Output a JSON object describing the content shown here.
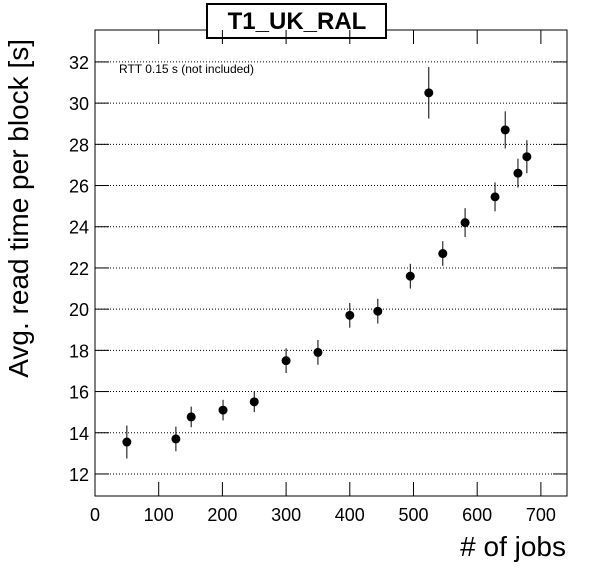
{
  "chart_data": {
    "type": "scatter",
    "title": "T1_UK_RAL",
    "annotation": "RTT 0.15 s (not included)",
    "x_label": "# of jobs",
    "y_label": "Avg. read time per block [s]",
    "x": [
      50,
      127,
      151,
      201,
      250,
      300,
      350,
      400,
      444,
      495,
      524,
      546,
      581,
      628,
      644,
      664,
      678
    ],
    "values": [
      13.55,
      13.7,
      14.77,
      15.1,
      15.5,
      17.5,
      17.9,
      19.7,
      19.9,
      21.6,
      30.5,
      22.7,
      24.2,
      25.45,
      28.7,
      26.6,
      27.4
    ],
    "errors": [
      0.8,
      0.6,
      0.5,
      0.5,
      0.5,
      0.6,
      0.6,
      0.6,
      0.6,
      0.6,
      1.25,
      0.6,
      0.7,
      0.7,
      0.9,
      0.7,
      0.8
    ],
    "color": "#000000",
    "xlim": [
      0,
      741
    ],
    "xticks": [
      0,
      100,
      200,
      300,
      400,
      500,
      600,
      700
    ],
    "ylim": [
      10.93,
      33.55
    ],
    "yticks": [
      12,
      14,
      16,
      18,
      20,
      22,
      24,
      26,
      28,
      30,
      32
    ],
    "grid": true
  }
}
